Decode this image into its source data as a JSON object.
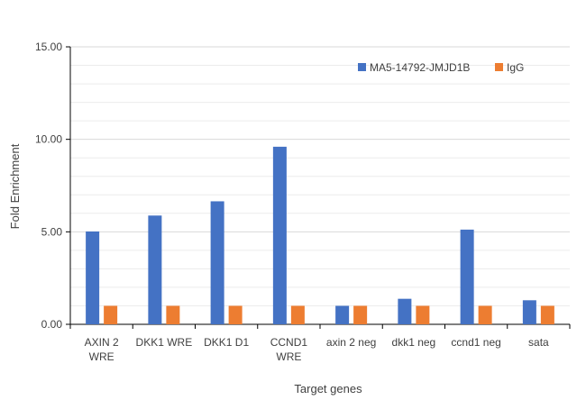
{
  "chart_data": {
    "type": "bar",
    "title": "",
    "xlabel": "Target genes",
    "ylabel": "Fold Enrichment",
    "ylim": [
      0,
      15
    ],
    "yticks": [
      "0.00",
      "5.00",
      "10.00",
      "15.00"
    ],
    "ytick_values": [
      0,
      5,
      10,
      15
    ],
    "minor_grid_step": 1,
    "grid": true,
    "legend_position": "top-right",
    "categories": [
      [
        "AXIN 2",
        "WRE"
      ],
      [
        "DKK1 WRE"
      ],
      [
        "DKK1 D1"
      ],
      [
        "CCND1",
        "WRE"
      ],
      [
        "axin 2 neg"
      ],
      [
        "dkk1 neg"
      ],
      [
        "ccnd1 neg"
      ],
      [
        "sata"
      ]
    ],
    "series": [
      {
        "name": "MA5-14792-JMJD1B",
        "color": "#4472c4",
        "values": [
          5.02,
          5.88,
          6.65,
          9.6,
          1.0,
          1.38,
          5.12,
          1.3
        ]
      },
      {
        "name": "IgG",
        "color": "#ed7d31",
        "values": [
          1.0,
          1.0,
          1.0,
          1.0,
          1.0,
          1.0,
          1.0,
          1.0
        ]
      }
    ]
  }
}
